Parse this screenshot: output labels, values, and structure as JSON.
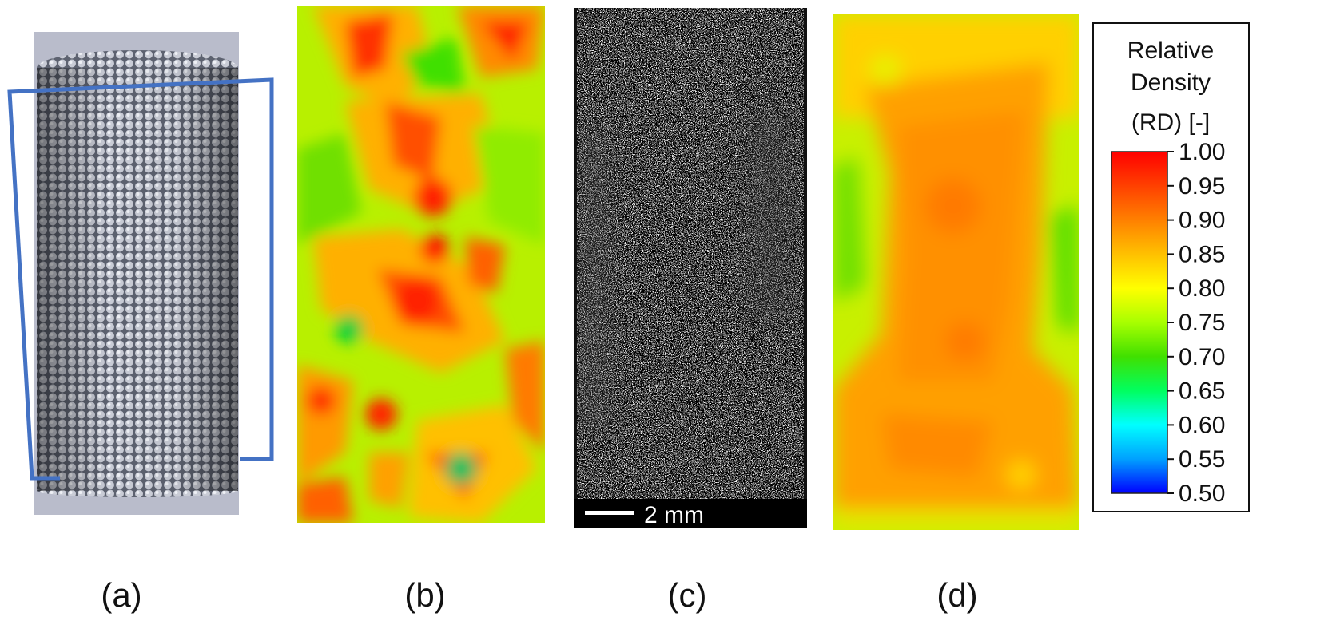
{
  "panels": {
    "a": {
      "label": "(a)"
    },
    "b": {
      "label": "(b)"
    },
    "c": {
      "label": "(c)",
      "scale_bar": "2 mm"
    },
    "d": {
      "label": "(d)"
    }
  },
  "colorbar": {
    "title_lines": [
      "Relative",
      "Density",
      "(RD) [-]"
    ],
    "ticks": [
      "1.00",
      "0.95",
      "0.90",
      "0.85",
      "0.80",
      "0.75",
      "0.70",
      "0.65",
      "0.60",
      "0.55",
      "0.50"
    ],
    "colors": [
      "#0000ff",
      "#00a0ff",
      "#00ffff",
      "#00ff60",
      "#40e000",
      "#a8ff00",
      "#ffff00",
      "#ffc000",
      "#ff8000",
      "#ff4000",
      "#ff0000"
    ]
  },
  "colors": {
    "frame": "#4472c4",
    "backdrop": "#b9bccb"
  }
}
